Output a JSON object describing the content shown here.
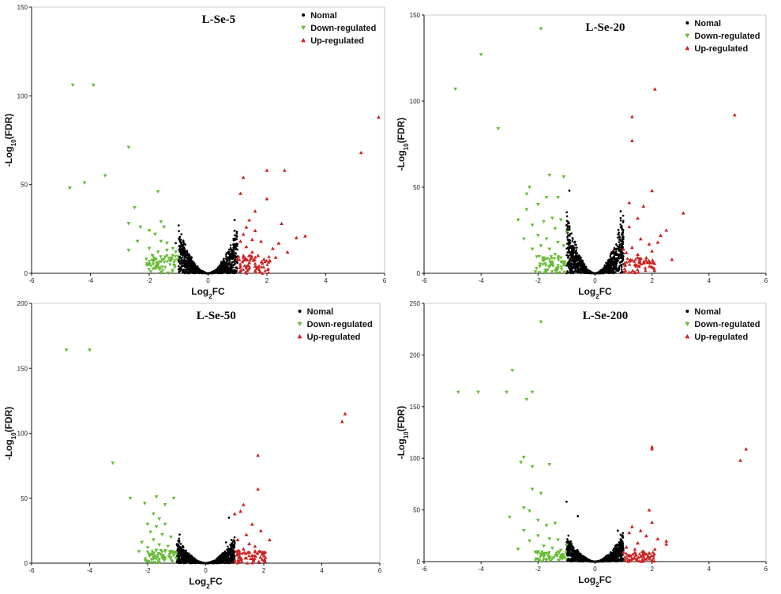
{
  "chart_data": [
    {
      "type": "scatter",
      "title": "L-Se-5",
      "xlabel": "Log2FC",
      "ylabel": "-Log10(FDR)",
      "xlim": [
        -6,
        6
      ],
      "ylim": [
        0,
        150
      ],
      "xticks": [
        -6,
        -4,
        -2,
        0,
        2,
        4,
        6
      ],
      "yticks": [
        0,
        50,
        100,
        150
      ],
      "legend_position": "top-right",
      "legend": [
        "Nomal",
        "Down-regulated",
        "Up-regulated"
      ],
      "colors": {
        "Nomal": "#000000",
        "Down-regulated": "#66bb33",
        "Up-regulated": "#cc2222"
      },
      "down_points": [
        [
          -4.6,
          106
        ],
        [
          -3.9,
          106
        ],
        [
          -4.7,
          48
        ],
        [
          -4.2,
          51
        ],
        [
          -3.5,
          55
        ],
        [
          -2.7,
          71
        ],
        [
          -2.5,
          37
        ],
        [
          -1.7,
          46
        ],
        [
          -2.7,
          28
        ],
        [
          -2.3,
          26
        ],
        [
          -2.0,
          24
        ],
        [
          -1.8,
          22
        ],
        [
          -2.4,
          18
        ],
        [
          -2.0,
          14
        ],
        [
          -1.6,
          29
        ],
        [
          -1.5,
          26
        ],
        [
          -2.7,
          13
        ],
        [
          -1.7,
          12
        ],
        [
          -1.4,
          13
        ],
        [
          -1.2,
          10
        ],
        [
          -1.9,
          10
        ],
        [
          -1.5,
          8
        ],
        [
          -1.3,
          7
        ],
        [
          -2.1,
          8
        ],
        [
          -1.8,
          8
        ],
        [
          -1.6,
          18
        ],
        [
          -1.4,
          17
        ],
        [
          -1.2,
          14
        ],
        [
          -1.1,
          12
        ]
      ],
      "up_points": [
        [
          5.8,
          88
        ],
        [
          5.2,
          68
        ],
        [
          2.6,
          58
        ],
        [
          2.0,
          58
        ],
        [
          1.2,
          54
        ],
        [
          1.1,
          45
        ],
        [
          2.0,
          42
        ],
        [
          1.6,
          35
        ],
        [
          2.5,
          28
        ],
        [
          3.0,
          20
        ],
        [
          3.3,
          21
        ],
        [
          1.4,
          30
        ],
        [
          1.3,
          26
        ],
        [
          1.6,
          24
        ],
        [
          1.2,
          22
        ],
        [
          1.8,
          18
        ],
        [
          2.2,
          14
        ],
        [
          2.4,
          17
        ],
        [
          1.5,
          19
        ],
        [
          1.1,
          18
        ],
        [
          1.3,
          15
        ],
        [
          1.2,
          10
        ],
        [
          1.5,
          12
        ],
        [
          1.7,
          10
        ],
        [
          1.9,
          8
        ],
        [
          1.4,
          6
        ],
        [
          2.1,
          7
        ],
        [
          1.0,
          8
        ],
        [
          1.1,
          4
        ],
        [
          1.3,
          3
        ],
        [
          1.6,
          4
        ],
        [
          2.7,
          12
        ],
        [
          2.3,
          9
        ]
      ],
      "normal_outliers": [
        [
          -1.0,
          27
        ],
        [
          0.9,
          30
        ],
        [
          0.9,
          24
        ],
        [
          -1.1,
          17
        ]
      ]
    },
    {
      "type": "scatter",
      "title": "L-Se-20",
      "xlabel": "Log2FC",
      "ylabel": "-Log10(FDR)",
      "xlim": [
        -6,
        6
      ],
      "ylim": [
        0,
        150
      ],
      "xticks": [
        -6,
        -4,
        -2,
        0,
        2,
        4,
        6
      ],
      "yticks": [
        0,
        50,
        100,
        150
      ],
      "legend_position": "top-right",
      "legend": [
        "Nomal",
        "Down-regulated",
        "Up-regulated"
      ],
      "colors": {
        "Nomal": "#000000",
        "Down-regulated": "#66bb33",
        "Up-regulated": "#cc2222"
      },
      "down_points": [
        [
          -1.9,
          142
        ],
        [
          -4.0,
          127
        ],
        [
          -4.9,
          107
        ],
        [
          -3.4,
          84
        ],
        [
          -1.6,
          57
        ],
        [
          -1.1,
          56
        ],
        [
          -2.3,
          50
        ],
        [
          -2.4,
          46
        ],
        [
          -1.3,
          44
        ],
        [
          -1.7,
          44
        ],
        [
          -2.0,
          40
        ],
        [
          -2.4,
          37
        ],
        [
          -2.7,
          31
        ],
        [
          -2.2,
          28
        ],
        [
          -1.8,
          30
        ],
        [
          -1.5,
          32
        ],
        [
          -1.2,
          31
        ],
        [
          -1.4,
          26
        ],
        [
          -2.0,
          22
        ],
        [
          -1.7,
          20
        ],
        [
          -1.3,
          18
        ],
        [
          -1.1,
          16
        ],
        [
          -1.6,
          14
        ],
        [
          -1.9,
          16
        ],
        [
          -2.2,
          14
        ],
        [
          -1.4,
          11
        ],
        [
          -1.2,
          9
        ],
        [
          -1.8,
          9
        ],
        [
          -1.5,
          6
        ],
        [
          -1.1,
          5
        ],
        [
          -2.5,
          20
        ],
        [
          -1.0,
          24
        ]
      ],
      "up_points": [
        [
          2.1,
          107
        ],
        [
          4.9,
          92
        ],
        [
          1.3,
          91
        ],
        [
          1.3,
          77
        ],
        [
          2.0,
          48
        ],
        [
          1.2,
          41
        ],
        [
          1.7,
          39
        ],
        [
          3.1,
          35
        ],
        [
          1.5,
          32
        ],
        [
          1.2,
          27
        ],
        [
          2.5,
          25
        ],
        [
          2.3,
          22
        ],
        [
          1.6,
          20
        ],
        [
          1.9,
          17
        ],
        [
          1.3,
          15
        ],
        [
          1.1,
          12
        ],
        [
          1.5,
          11
        ],
        [
          1.8,
          9
        ],
        [
          2.0,
          13
        ],
        [
          2.7,
          8
        ],
        [
          1.2,
          7
        ],
        [
          1.4,
          5
        ],
        [
          1.0,
          14
        ],
        [
          2.2,
          18
        ],
        [
          1.7,
          6
        ]
      ],
      "normal_outliers": [
        [
          -0.9,
          48
        ],
        [
          0.9,
          36
        ],
        [
          0.9,
          32
        ],
        [
          -1.0,
          28
        ]
      ]
    },
    {
      "type": "scatter",
      "title": "L-Se-50",
      "xlabel": "Log2FC",
      "ylabel": "-Log10(FDR)",
      "xlim": [
        -6,
        6
      ],
      "ylim": [
        0,
        200
      ],
      "xticks": [
        -6,
        -4,
        -2,
        0,
        2,
        4,
        6
      ],
      "yticks": [
        0,
        50,
        100,
        150,
        200
      ],
      "legend_position": "top-right",
      "legend": [
        "Nomal",
        "Down-regulated",
        "Up-regulated"
      ],
      "colors": {
        "Nomal": "#000000",
        "Down-regulated": "#66bb33",
        "Up-regulated": "#cc2222"
      },
      "down_points": [
        [
          -4.8,
          164
        ],
        [
          -4.0,
          164
        ],
        [
          -3.2,
          77
        ],
        [
          -2.6,
          50
        ],
        [
          -1.7,
          51
        ],
        [
          -1.1,
          50
        ],
        [
          -2.1,
          46
        ],
        [
          -1.4,
          45
        ],
        [
          -1.8,
          38
        ],
        [
          -1.6,
          34
        ],
        [
          -2.0,
          30
        ],
        [
          -1.4,
          30
        ],
        [
          -1.7,
          28
        ],
        [
          -1.9,
          24
        ],
        [
          -1.5,
          22
        ],
        [
          -1.2,
          20
        ],
        [
          -1.8,
          18
        ],
        [
          -2.2,
          16
        ],
        [
          -1.6,
          14
        ],
        [
          -1.3,
          13
        ],
        [
          -2.0,
          12
        ],
        [
          -1.7,
          10
        ],
        [
          -1.4,
          9
        ],
        [
          -1.2,
          8
        ],
        [
          -1.9,
          7
        ],
        [
          -1.1,
          6
        ],
        [
          -1.5,
          5
        ],
        [
          -2.3,
          9
        ]
      ],
      "up_points": [
        [
          4.8,
          115
        ],
        [
          4.7,
          109
        ],
        [
          1.8,
          83
        ],
        [
          1.8,
          57
        ],
        [
          1.3,
          45
        ],
        [
          1.2,
          40
        ],
        [
          1.0,
          38
        ],
        [
          1.6,
          30
        ],
        [
          1.9,
          25
        ],
        [
          1.4,
          22
        ],
        [
          2.2,
          18
        ],
        [
          1.1,
          18
        ],
        [
          1.5,
          15
        ],
        [
          1.7,
          13
        ],
        [
          1.3,
          11
        ],
        [
          1.9,
          9
        ],
        [
          1.1,
          8
        ],
        [
          1.6,
          6
        ],
        [
          1.4,
          4
        ],
        [
          1.2,
          3
        ]
      ],
      "normal_outliers": [
        [
          0.8,
          35
        ],
        [
          -0.9,
          22
        ],
        [
          0.7,
          16
        ]
      ]
    },
    {
      "type": "scatter",
      "title": "L-Se-200",
      "xlabel": "Log2FC",
      "ylabel": "-Log10(FDR)",
      "xlim": [
        -6,
        6
      ],
      "ylim": [
        0,
        250
      ],
      "xticks": [
        -6,
        -4,
        -2,
        0,
        2,
        4,
        6
      ],
      "yticks": [
        0,
        50,
        100,
        150,
        200,
        250
      ],
      "legend_position": "top-right",
      "legend": [
        "Nomal",
        "Down-regulated",
        "Up-regulated"
      ],
      "colors": {
        "Nomal": "#000000",
        "Down-regulated": "#66bb33",
        "Up-regulated": "#cc2222"
      },
      "down_points": [
        [
          -1.9,
          232
        ],
        [
          -2.9,
          185
        ],
        [
          -4.8,
          164
        ],
        [
          -4.1,
          164
        ],
        [
          -3.1,
          164
        ],
        [
          -2.2,
          164
        ],
        [
          -2.4,
          157
        ],
        [
          -2.5,
          101
        ],
        [
          -2.6,
          96
        ],
        [
          -2.2,
          92
        ],
        [
          -1.6,
          94
        ],
        [
          -2.2,
          70
        ],
        [
          -1.9,
          66
        ],
        [
          -2.5,
          52
        ],
        [
          -2.3,
          49
        ],
        [
          -3.0,
          43
        ],
        [
          -2.0,
          40
        ],
        [
          -1.7,
          35
        ],
        [
          -1.4,
          37
        ],
        [
          -2.5,
          30
        ],
        [
          -2.0,
          25
        ],
        [
          -1.6,
          22
        ],
        [
          -1.3,
          21
        ],
        [
          -2.3,
          20
        ],
        [
          -1.8,
          15
        ],
        [
          -1.5,
          13
        ],
        [
          -1.2,
          11
        ],
        [
          -2.1,
          9
        ],
        [
          -1.7,
          8
        ],
        [
          -1.4,
          6
        ],
        [
          -1.1,
          5
        ],
        [
          -2.7,
          12
        ],
        [
          -1.0,
          16
        ]
      ],
      "up_points": [
        [
          5.3,
          109
        ],
        [
          5.1,
          98
        ],
        [
          2.0,
          111
        ],
        [
          2.0,
          109
        ],
        [
          1.9,
          50
        ],
        [
          2.0,
          38
        ],
        [
          1.3,
          34
        ],
        [
          1.6,
          30
        ],
        [
          1.2,
          28
        ],
        [
          1.8,
          25
        ],
        [
          2.2,
          22
        ],
        [
          2.5,
          20
        ],
        [
          2.5,
          17
        ],
        [
          1.5,
          18
        ],
        [
          1.1,
          14
        ],
        [
          1.4,
          12
        ],
        [
          1.7,
          10
        ],
        [
          1.9,
          8
        ],
        [
          2.1,
          12
        ],
        [
          1.2,
          6
        ],
        [
          1.6,
          5
        ],
        [
          1.0,
          9
        ],
        [
          1.3,
          3
        ]
      ],
      "normal_outliers": [
        [
          -1.0,
          58
        ],
        [
          -0.6,
          44
        ],
        [
          0.8,
          30
        ],
        [
          0.9,
          26
        ]
      ]
    }
  ]
}
